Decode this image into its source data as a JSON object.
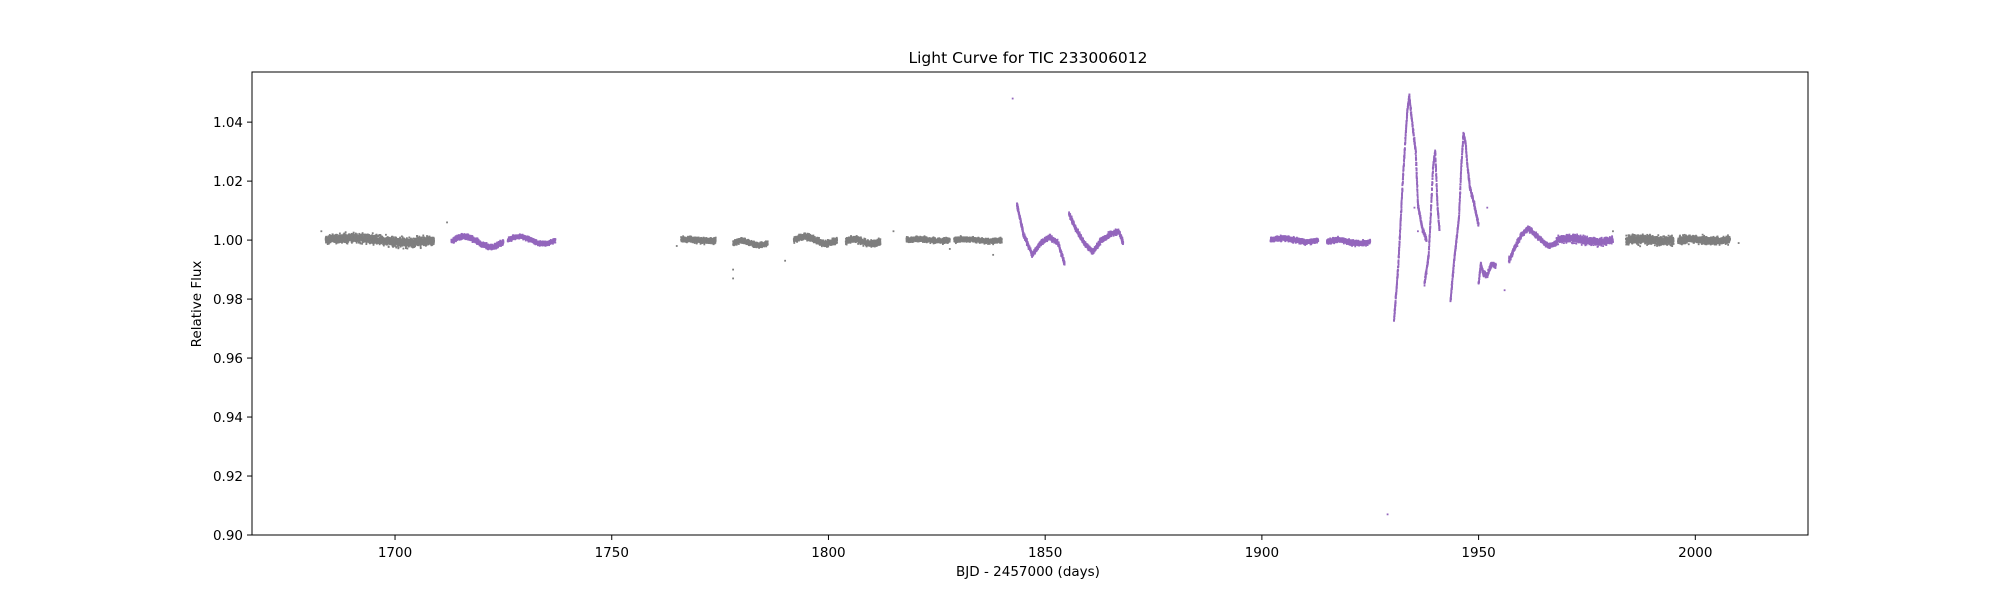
{
  "chart_data": {
    "type": "scatter",
    "title": "Light Curve for TIC 233006012",
    "xlabel": "BJD - 2457000 (days)",
    "ylabel": "Relative Flux",
    "xlim": [
      1667,
      2026
    ],
    "ylim": [
      0.9,
      1.057
    ],
    "xticks": [
      1700,
      1750,
      1800,
      1850,
      1900,
      1950,
      2000
    ],
    "yticks": [
      0.9,
      0.92,
      0.94,
      0.96,
      0.98,
      1.0,
      1.02,
      1.04
    ],
    "ytick_labels": [
      "0.90",
      "0.92",
      "0.94",
      "0.96",
      "0.98",
      "1.00",
      "1.02",
      "1.04"
    ],
    "grid": false,
    "legend": "none",
    "series": [
      {
        "color": "#7f7f7f",
        "segments": [
          {
            "shape": "noisy",
            "x": [
              1684,
              1709
            ],
            "y": 1.0,
            "scatter": 0.0015,
            "wave": 0.0008
          },
          {
            "shape": "noisy",
            "x": [
              1766,
              1774
            ],
            "y": 1.0,
            "scatter": 0.0009,
            "wave": 0.0003
          },
          {
            "shape": "noisy",
            "x": [
              1778,
              1786
            ],
            "y": 0.999,
            "scatter": 0.0008,
            "wave": 0.0008
          },
          {
            "shape": "noisy",
            "x": [
              1792,
              1802
            ],
            "y": 1.0,
            "scatter": 0.001,
            "wave": 0.0012
          },
          {
            "shape": "noisy",
            "x": [
              1804,
              1812
            ],
            "y": 0.9995,
            "scatter": 0.001,
            "wave": 0.0008
          },
          {
            "shape": "noisy",
            "x": [
              1818,
              1828
            ],
            "y": 1.0,
            "scatter": 0.0008,
            "wave": 0.0003
          },
          {
            "shape": "noisy",
            "x": [
              1829,
              1840
            ],
            "y": 1.0,
            "scatter": 0.0008,
            "wave": 0.0003
          },
          {
            "shape": "noisy",
            "x": [
              1984,
              1995
            ],
            "y": 1.0,
            "scatter": 0.0015,
            "wave": 0.0003
          },
          {
            "shape": "noisy",
            "x": [
              1996,
              2008
            ],
            "y": 1.0,
            "scatter": 0.0012,
            "wave": 0.0003
          }
        ],
        "outliers": [
          [
            1683,
            1.003
          ],
          [
            1712,
            1.006
          ],
          [
            1765,
            0.998
          ],
          [
            1778,
            0.987
          ],
          [
            1778,
            0.99
          ],
          [
            1790,
            0.993
          ],
          [
            1815,
            1.003
          ],
          [
            1828,
            0.997
          ],
          [
            1838,
            0.995
          ],
          [
            1981,
            1.003
          ],
          [
            2010,
            0.999
          ]
        ]
      },
      {
        "color": "#9467bd",
        "segments": [
          {
            "shape": "noisy",
            "x": [
              1713,
              1725
            ],
            "y": 0.9995,
            "scatter": 0.0008,
            "wave": 0.0018
          },
          {
            "shape": "noisy",
            "x": [
              1726,
              1737
            ],
            "y": 1.0,
            "scatter": 0.0007,
            "wave": 0.0012
          },
          {
            "shape": "curve",
            "x": [
              1843.5,
              1845,
              1847,
              1849,
              1851,
              1853,
              1854.5
            ],
            "y": [
              1.012,
              1.002,
              0.995,
              0.999,
              1.001,
              0.999,
              0.992
            ]
          },
          {
            "shape": "curve",
            "x": [
              1855.5,
              1857,
              1859,
              1861,
              1863,
              1865,
              1867,
              1868
            ],
            "y": [
              1.009,
              1.004,
              0.999,
              0.996,
              1.0,
              1.002,
              1.003,
              0.999
            ]
          },
          {
            "shape": "noisy",
            "x": [
              1902,
              1913
            ],
            "y": 1.0,
            "scatter": 0.0008,
            "wave": 0.0006
          },
          {
            "shape": "noisy",
            "x": [
              1915,
              1925
            ],
            "y": 0.9995,
            "scatter": 0.0008,
            "wave": 0.0006
          },
          {
            "shape": "curve",
            "x": [
              1930.5,
              1931.5,
              1932.5,
              1933.5,
              1934,
              1934.5,
              1935.5,
              1936,
              1937,
              1938
            ],
            "y": [
              0.973,
              0.992,
              1.02,
              1.043,
              1.049,
              1.042,
              1.03,
              1.012,
              1.004,
              1.0
            ]
          },
          {
            "shape": "curve",
            "x": [
              1937.5,
              1938.5,
              1939,
              1939.5,
              1940,
              1940.5,
              1941
            ],
            "y": [
              0.985,
              0.995,
              1.01,
              1.025,
              1.03,
              1.012,
              1.003
            ]
          },
          {
            "shape": "curve",
            "x": [
              1943.5,
              1944.5,
              1945.5,
              1946,
              1946.5,
              1947,
              1947.5,
              1948,
              1949,
              1950
            ],
            "y": [
              0.979,
              0.995,
              1.008,
              1.025,
              1.036,
              1.033,
              1.024,
              1.018,
              1.012,
              1.005
            ]
          },
          {
            "shape": "curve",
            "x": [
              1950,
              1950.5,
              1951,
              1952,
              1953,
              1954
            ],
            "y": [
              0.985,
              0.992,
              0.989,
              0.988,
              0.992,
              0.991
            ]
          },
          {
            "shape": "curve",
            "x": [
              1957,
              1958.5,
              1960,
              1961.5,
              1963,
              1964.5,
              1966,
              1968
            ],
            "y": [
              0.993,
              0.998,
              1.002,
              1.004,
              1.002,
              1.0,
              0.998,
              0.999
            ]
          },
          {
            "shape": "noisy",
            "x": [
              1968,
              1981
            ],
            "y": 1.0,
            "scatter": 0.0012,
            "wave": 0.0006
          }
        ],
        "outliers": [
          [
            1842.5,
            1.048
          ],
          [
            1929,
            0.907
          ],
          [
            1935.2,
            1.011
          ],
          [
            1956,
            0.983
          ],
          [
            1936,
            1.003
          ],
          [
            1952,
            1.011
          ]
        ]
      }
    ]
  }
}
